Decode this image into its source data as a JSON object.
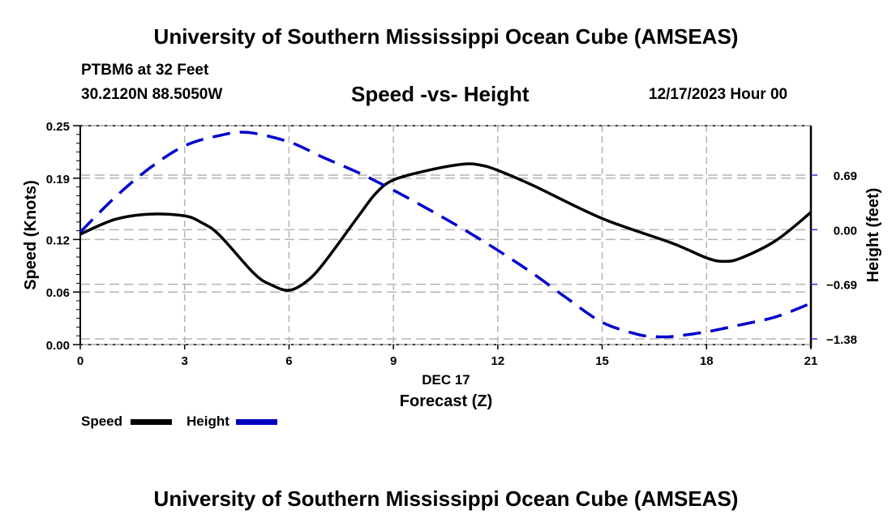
{
  "header": {
    "title_top": "University of Southern Mississippi Ocean Cube (AMSEAS)",
    "title_bottom": "University of Southern Mississippi Ocean Cube (AMSEAS)",
    "station": "PTBM6 at 32 Feet",
    "coords": "30.2120N  88.5050W",
    "date_hour": "12/17/2023 Hour 00"
  },
  "colors": {
    "speed": "#000000",
    "height": "#0000cc",
    "grid": "#b4b4b4"
  },
  "chart_data": {
    "type": "line",
    "title": "Speed -vs- Height",
    "xlabel": "Forecast (Z)",
    "xsublabel": "DEC 17",
    "ylabel": "Speed (Knots)",
    "y2label": "Height (feet)",
    "xlim": [
      0,
      21
    ],
    "ylim": [
      0,
      0.25
    ],
    "y2lim": [
      -1.38,
      1.38
    ],
    "xticks": [
      0,
      3,
      6,
      9,
      12,
      15,
      18,
      21
    ],
    "xtick_labels": [
      "0",
      "3",
      "6",
      "9",
      "12",
      "15",
      "18",
      "21"
    ],
    "yticks": [
      0.0,
      0.06,
      0.12,
      0.19,
      0.25
    ],
    "ytick_labels": [
      "0.00",
      "0.06",
      "0.12",
      "0.19",
      "0.25"
    ],
    "y2ticks": [
      0.69,
      0.0,
      -0.69,
      -1.38
    ],
    "y2tick_labels": [
      "0.69",
      "0.00",
      "−0.69",
      "−1.38"
    ],
    "grid": true,
    "legend_position": "bottom-left",
    "series": [
      {
        "name": "Speed",
        "axis": "left",
        "style": "solid",
        "x": [
          0,
          1,
          2,
          3,
          3.5,
          4,
          5,
          5.5,
          6,
          6.5,
          7,
          8,
          8.5,
          9,
          10,
          11,
          11.5,
          12,
          13,
          15,
          17,
          18,
          18.5,
          19,
          20,
          21
        ],
        "values": [
          0.126,
          0.143,
          0.149,
          0.147,
          0.139,
          0.125,
          0.081,
          0.068,
          0.062,
          0.072,
          0.093,
          0.147,
          0.173,
          0.188,
          0.199,
          0.206,
          0.205,
          0.199,
          0.182,
          0.144,
          0.116,
          0.099,
          0.095,
          0.099,
          0.119,
          0.151
        ]
      },
      {
        "name": "Height",
        "axis": "right",
        "style": "dashed",
        "x": [
          0,
          1,
          2,
          3,
          4,
          4.8,
          6,
          7,
          8,
          9,
          10,
          11,
          12,
          13,
          14,
          15,
          16,
          16.5,
          17,
          18,
          19,
          20,
          21
        ],
        "values": [
          -0.03,
          0.41,
          0.78,
          1.06,
          1.19,
          1.23,
          1.11,
          0.91,
          0.72,
          0.5,
          0.26,
          0.01,
          -0.26,
          -0.55,
          -0.87,
          -1.17,
          -1.32,
          -1.35,
          -1.35,
          -1.29,
          -1.2,
          -1.1,
          -0.93
        ]
      }
    ]
  }
}
